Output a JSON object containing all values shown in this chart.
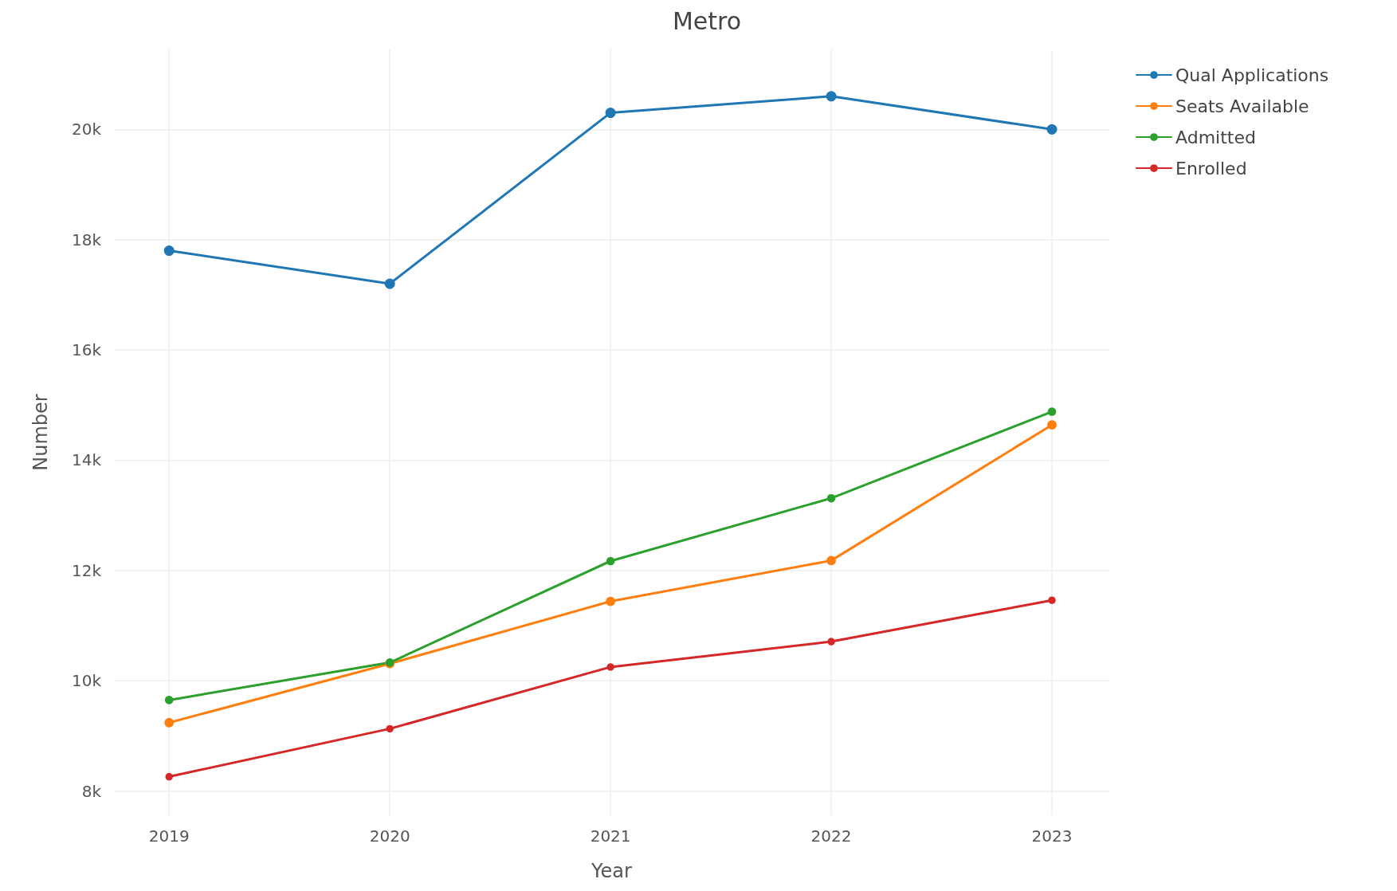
{
  "chart_data": {
    "type": "line",
    "title": "Metro",
    "xlabel": "Year",
    "ylabel": "Number",
    "x": [
      2019,
      2020,
      2021,
      2022,
      2023
    ],
    "series": [
      {
        "name": "Qual Applications",
        "color": "#1f77b4",
        "values": [
          17800,
          17200,
          20300,
          20600,
          20000
        ]
      },
      {
        "name": "Seats Available",
        "color": "#ff7f0e",
        "values": [
          9240,
          10310,
          11440,
          12180,
          14640
        ]
      },
      {
        "name": "Admitted",
        "color": "#2ca02c",
        "values": [
          9650,
          10330,
          12170,
          13310,
          14880
        ]
      },
      {
        "name": "Enrolled",
        "color": "#d62728",
        "values": [
          8260,
          9130,
          10250,
          10710,
          11460
        ]
      }
    ],
    "xlim": [
      2018.75,
      2023.26
    ],
    "xticks": [
      2019,
      2020,
      2021,
      2022,
      2023
    ],
    "ylim": [
      7560,
      21450
    ],
    "yticks": [
      {
        "value": 8000,
        "label": "8k"
      },
      {
        "value": 10000,
        "label": "10k"
      },
      {
        "value": 12000,
        "label": "12k"
      },
      {
        "value": 14000,
        "label": "14k"
      },
      {
        "value": 16000,
        "label": "16k"
      },
      {
        "value": 18000,
        "label": "18k"
      },
      {
        "value": 20000,
        "label": "20k"
      }
    ],
    "grid": true,
    "legend": "top right",
    "marker": "circle",
    "line_style": "solid"
  }
}
